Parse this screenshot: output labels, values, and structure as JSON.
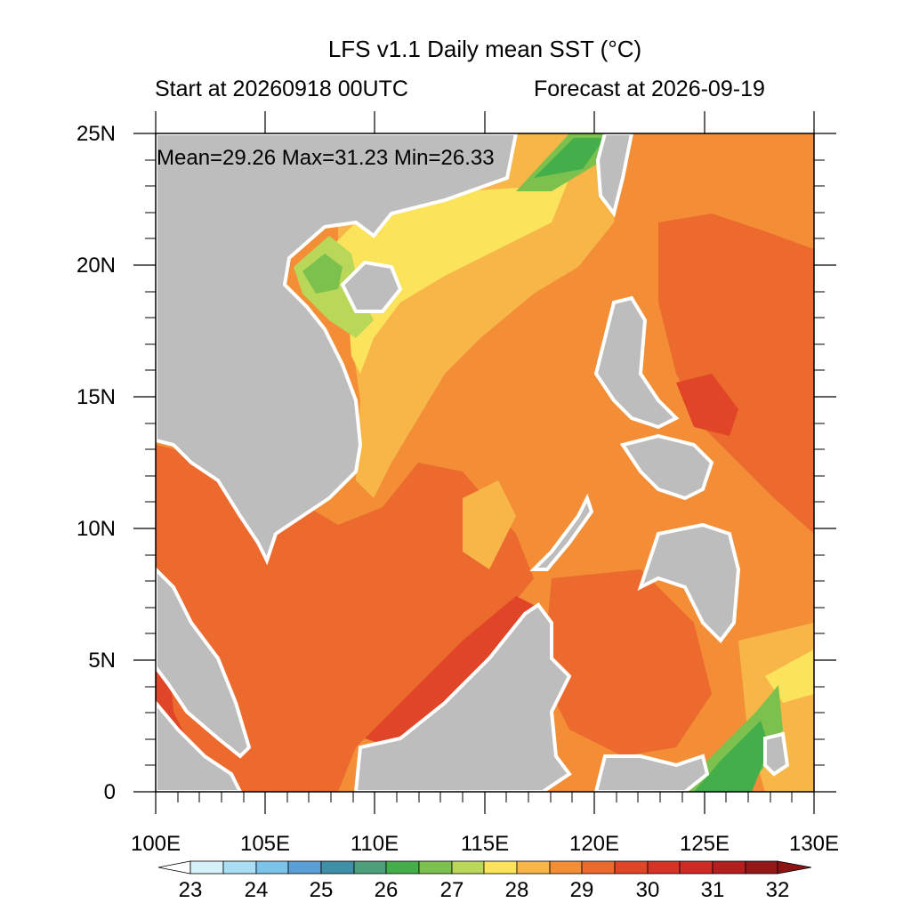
{
  "header": {
    "title": "LFS v1.1 Daily mean SST (°C)",
    "start": "Start at 20260918 00UTC",
    "forecast": "Forecast at 2026-09-19"
  },
  "stats": "Mean=29.26  Max=31.23  Min=26.33",
  "map": {
    "lon_labels": [
      "100E",
      "105E",
      "110E",
      "115E",
      "120E",
      "125E",
      "130E"
    ],
    "lat_labels": [
      "25N",
      "20N",
      "15N",
      "10N",
      "5N",
      "0"
    ],
    "lon_range": [
      100,
      130
    ],
    "lat_range": [
      0,
      25
    ],
    "land_color": "#bdbdbd"
  },
  "colorbar": {
    "labels": [
      "23",
      "24",
      "25",
      "26",
      "27",
      "28",
      "29",
      "30",
      "31",
      "32"
    ],
    "colors": [
      "#ffffff",
      "#d7f1fb",
      "#a9def4",
      "#7cc3ea",
      "#5a9fd6",
      "#3f8fa8",
      "#4ea07c",
      "#43ae4a",
      "#7cc14e",
      "#b9d758",
      "#fbe35c",
      "#f8b649",
      "#f38e37",
      "#ec6a2e",
      "#e04528",
      "#cf2a24",
      "#b51e1e",
      "#951818"
    ]
  }
}
